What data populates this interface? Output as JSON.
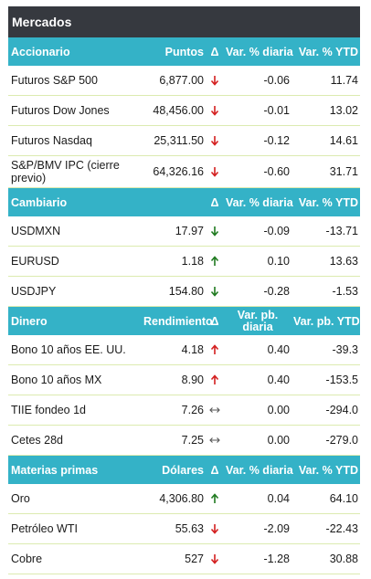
{
  "title": "Mercados",
  "colors": {
    "header_dark": "#36393f",
    "section_teal": "#34b2c7",
    "row_border": "#dcebb0",
    "arrow_down_red": "#d42020",
    "arrow_up_green": "#1f7a1f",
    "arrow_flat_gray": "#555555"
  },
  "sections": [
    {
      "headers": [
        "Accionario",
        "Puntos",
        "Δ",
        "Var. % diaria",
        "Var. % YTD"
      ],
      "rows": [
        {
          "name": "Futuros S&P 500",
          "value": "6,877.00",
          "arrow": "down-red",
          "daily": "-0.06",
          "ytd": "11.74"
        },
        {
          "name": "Futuros Dow Jones",
          "value": "48,456.00",
          "arrow": "down-red",
          "daily": "-0.01",
          "ytd": "13.02"
        },
        {
          "name": "Futuros Nasdaq",
          "value": "25,311.50",
          "arrow": "down-red",
          "daily": "-0.12",
          "ytd": "14.61"
        },
        {
          "name": "S&P/BMV IPC (cierre previo)",
          "value": "64,326.16",
          "arrow": "down-red",
          "daily": "-0.60",
          "ytd": "31.71"
        }
      ]
    },
    {
      "headers": [
        "Cambiario",
        "",
        "Δ",
        "Var. % diaria",
        "Var. % YTD"
      ],
      "rows": [
        {
          "name": "USDMXN",
          "value": "17.97",
          "arrow": "down-green",
          "daily": "-0.09",
          "ytd": "-13.71"
        },
        {
          "name": "EURUSD",
          "value": "1.18",
          "arrow": "up-green",
          "daily": "0.10",
          "ytd": "13.63"
        },
        {
          "name": "USDJPY",
          "value": "154.80",
          "arrow": "down-green",
          "daily": "-0.28",
          "ytd": "-1.53"
        }
      ]
    },
    {
      "headers": [
        "Dinero",
        "Rendimiento",
        "Δ",
        "Var. pb. diaria",
        "Var. pb. YTD"
      ],
      "rows": [
        {
          "name": "Bono 10 años EE. UU.",
          "value": "4.18",
          "arrow": "up-red",
          "daily": "0.40",
          "ytd": "-39.3"
        },
        {
          "name": "Bono 10 años MX",
          "value": "8.90",
          "arrow": "up-red",
          "daily": "0.40",
          "ytd": "-153.5"
        },
        {
          "name": "TIIE fondeo 1d",
          "value": "7.26",
          "arrow": "flat-gray",
          "daily": "0.00",
          "ytd": "-294.0"
        },
        {
          "name": "Cetes 28d",
          "value": "7.25",
          "arrow": "flat-gray",
          "daily": "0.00",
          "ytd": "-279.0"
        }
      ]
    },
    {
      "headers": [
        "Materias primas",
        "Dólares",
        "Δ",
        "Var. % diaria",
        "Var. % YTD"
      ],
      "rows": [
        {
          "name": "Oro",
          "value": "4,306.80",
          "arrow": "up-green",
          "daily": "0.04",
          "ytd": "64.10"
        },
        {
          "name": "Petróleo WTI",
          "value": "55.63",
          "arrow": "down-red",
          "daily": "-2.09",
          "ytd": "-22.43"
        },
        {
          "name": "Cobre",
          "value": "527",
          "arrow": "down-red",
          "daily": "-1.28",
          "ytd": "30.88"
        }
      ]
    }
  ]
}
